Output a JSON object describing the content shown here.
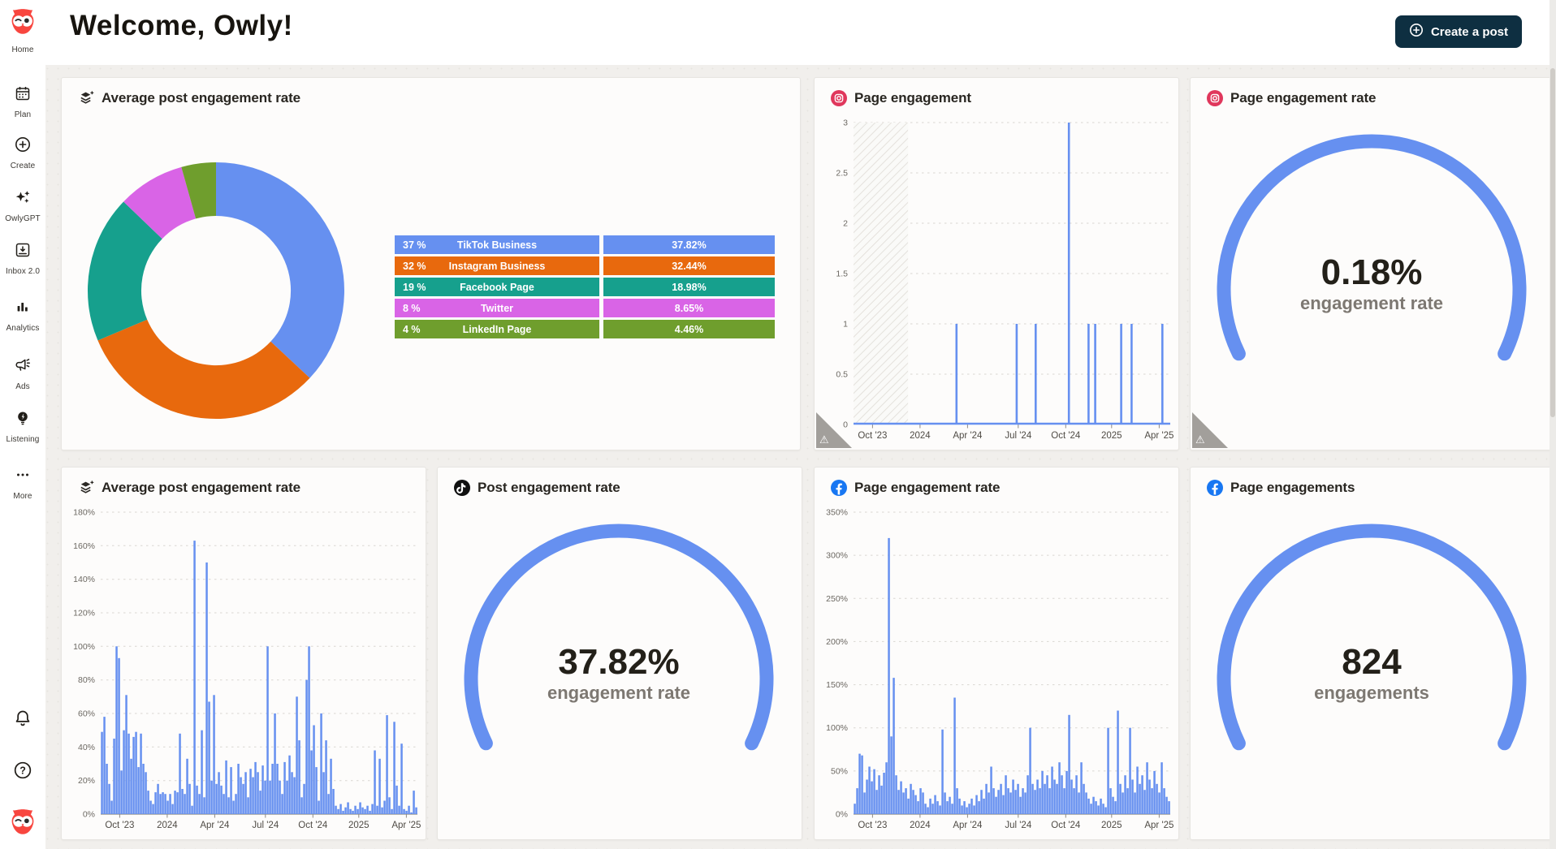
{
  "header": {
    "title": "Welcome, Owly!",
    "create_post_label": "Create a post"
  },
  "sidebar": {
    "items": [
      {
        "label": "Home",
        "icon": "owl-logo"
      },
      {
        "label": "Plan",
        "icon": "calendar-icon"
      },
      {
        "label": "Create",
        "icon": "plus-circle-icon"
      },
      {
        "label": "OwlyGPT",
        "icon": "sparkles-icon"
      },
      {
        "label": "Inbox 2.0",
        "icon": "inbox-icon"
      },
      {
        "label": "Analytics",
        "icon": "bar-chart-icon"
      },
      {
        "label": "Ads",
        "icon": "megaphone-icon"
      },
      {
        "label": "Listening",
        "icon": "lightbulb-icon"
      },
      {
        "label": "More",
        "icon": "dots-icon"
      }
    ],
    "bottom": [
      {
        "label": "Notifications",
        "icon": "bell-icon"
      },
      {
        "label": "Help",
        "icon": "help-icon"
      },
      {
        "label": "Profile",
        "icon": "owl-avatar",
        "badge": "!"
      }
    ]
  },
  "colors": {
    "accent_blue": "#6690F0",
    "orange": "#E8690D",
    "teal": "#16A08D",
    "magenta": "#D964E6",
    "green": "#6F9E2D",
    "instagram": "#E0375C",
    "facebook": "#1877F2",
    "tiktok": "#101010",
    "button_dark": "#0e2f41"
  },
  "chart_data": [
    {
      "type": "pie",
      "title": "Average post engagement rate",
      "values": [
        37.82,
        32.44,
        18.98,
        8.65,
        4.46
      ],
      "colors": [
        "#6690F0",
        "#E8690D",
        "#16A08D",
        "#D964E6",
        "#6F9E2D"
      ],
      "legend": [
        {
          "share": "37 %",
          "label": "TikTok Business",
          "value": "37.82%",
          "color": "#6690F0"
        },
        {
          "share": "32 %",
          "label": "Instagram Business",
          "value": "32.44%",
          "color": "#E8690D"
        },
        {
          "share": "19 %",
          "label": "Facebook Page",
          "value": "18.98%",
          "color": "#16A08D"
        },
        {
          "share": "8 %",
          "label": "Twitter",
          "value": "8.65%",
          "color": "#D964E6"
        },
        {
          "share": "4 %",
          "label": "LinkedIn Page",
          "value": "4.46%",
          "color": "#6F9E2D"
        }
      ]
    },
    {
      "type": "line",
      "title": "Page engagement",
      "network": "instagram",
      "ylim": [
        0,
        3
      ],
      "yticks": [
        "0",
        "0.5",
        "1",
        "1.5",
        "2",
        "2.5",
        "3"
      ],
      "xticks": [
        {
          "label": "Oct '23",
          "f": 0.06
        },
        {
          "label": "2024",
          "f": 0.21
        },
        {
          "label": "Apr '24",
          "f": 0.36
        },
        {
          "label": "Jul '24",
          "f": 0.52
        },
        {
          "label": "Oct '24",
          "f": 0.67
        },
        {
          "label": "2025",
          "f": 0.815
        },
        {
          "label": "Apr '25",
          "f": 0.965
        }
      ],
      "no_data_region": [
        0,
        0.172
      ],
      "spikes": [
        {
          "f": 0.325,
          "v": 1
        },
        {
          "f": 0.515,
          "v": 1
        },
        {
          "f": 0.575,
          "v": 1
        },
        {
          "f": 0.68,
          "v": 3
        },
        {
          "f": 0.742,
          "v": 1
        },
        {
          "f": 0.763,
          "v": 1
        },
        {
          "f": 0.845,
          "v": 1
        },
        {
          "f": 0.878,
          "v": 1
        },
        {
          "f": 0.975,
          "v": 1
        }
      ]
    },
    {
      "type": "gauge",
      "title": "Page engagement rate",
      "network": "instagram",
      "value": "0.18%",
      "label": "engagement rate"
    },
    {
      "type": "bar",
      "title": "Average post engagement rate",
      "network": "all",
      "ylim": [
        0,
        180
      ],
      "yticks": [
        "0%",
        "20%",
        "40%",
        "60%",
        "80%",
        "100%",
        "120%",
        "140%",
        "160%",
        "180%"
      ],
      "xticks": [
        {
          "label": "Oct '23",
          "f": 0.06
        },
        {
          "label": "2024",
          "f": 0.21
        },
        {
          "label": "Apr '24",
          "f": 0.36
        },
        {
          "label": "Jul '24",
          "f": 0.52
        },
        {
          "label": "Oct '24",
          "f": 0.67
        },
        {
          "label": "2025",
          "f": 0.815
        },
        {
          "label": "Apr '25",
          "f": 0.965
        }
      ],
      "values": [
        49,
        58,
        30,
        18,
        8,
        45,
        100,
        93,
        26,
        50,
        71,
        48,
        33,
        46,
        49,
        28,
        48,
        30,
        25,
        14,
        8,
        6,
        13,
        18,
        12,
        13,
        12,
        8,
        12,
        6,
        14,
        13,
        48,
        15,
        12,
        33,
        18,
        5,
        163,
        17,
        12,
        50,
        10,
        150,
        67,
        20,
        71,
        18,
        25,
        17,
        12,
        32,
        10,
        28,
        8,
        12,
        30,
        22,
        18,
        25,
        10,
        27,
        22,
        31,
        25,
        14,
        29,
        20,
        100,
        20,
        30,
        60,
        30,
        20,
        12,
        31,
        20,
        35,
        25,
        22,
        70,
        44,
        10,
        18,
        80,
        100,
        38,
        53,
        28,
        8,
        60,
        25,
        44,
        12,
        33,
        15,
        5,
        3,
        6,
        2,
        4,
        7,
        3,
        2,
        5,
        3,
        7,
        4,
        3,
        5,
        2,
        6,
        38,
        5,
        33,
        4,
        8,
        59,
        10,
        3,
        55,
        17,
        5,
        42,
        3,
        2,
        5,
        1,
        14,
        4
      ]
    },
    {
      "type": "gauge",
      "title": "Post engagement rate",
      "network": "tiktok",
      "value": "37.82%",
      "label": "engagement rate"
    },
    {
      "type": "bar",
      "title": "Page engagement rate",
      "network": "facebook",
      "ylim": [
        0,
        350
      ],
      "yticks": [
        "0%",
        "50%",
        "100%",
        "150%",
        "200%",
        "250%",
        "300%",
        "350%"
      ],
      "xticks": [
        {
          "label": "Oct '23",
          "f": 0.06
        },
        {
          "label": "2024",
          "f": 0.21
        },
        {
          "label": "Apr '24",
          "f": 0.36
        },
        {
          "label": "Jul '24",
          "f": 0.52
        },
        {
          "label": "Oct '24",
          "f": 0.67
        },
        {
          "label": "2025",
          "f": 0.815
        },
        {
          "label": "Apr '25",
          "f": 0.965
        }
      ],
      "values": [
        12,
        30,
        70,
        68,
        25,
        40,
        55,
        38,
        52,
        28,
        45,
        33,
        48,
        60,
        320,
        90,
        158,
        45,
        28,
        38,
        25,
        30,
        18,
        35,
        28,
        22,
        15,
        30,
        25,
        12,
        8,
        18,
        12,
        22,
        15,
        10,
        98,
        25,
        15,
        20,
        12,
        135,
        30,
        18,
        10,
        15,
        8,
        12,
        18,
        10,
        22,
        15,
        28,
        18,
        35,
        25,
        55,
        30,
        20,
        28,
        35,
        22,
        45,
        30,
        25,
        40,
        28,
        35,
        20,
        30,
        25,
        45,
        100,
        35,
        28,
        40,
        30,
        50,
        35,
        45,
        30,
        55,
        40,
        35,
        60,
        45,
        30,
        50,
        115,
        40,
        30,
        45,
        25,
        60,
        35,
        25,
        18,
        12,
        20,
        15,
        10,
        18,
        12,
        8,
        100,
        30,
        20,
        15,
        120,
        35,
        25,
        45,
        30,
        100,
        40,
        25,
        55,
        35,
        45,
        28,
        60,
        40,
        30,
        50,
        35,
        25,
        60,
        30,
        20,
        15
      ]
    },
    {
      "type": "gauge",
      "title": "Page engagements",
      "network": "facebook",
      "value": "824",
      "label": "engagements"
    }
  ]
}
